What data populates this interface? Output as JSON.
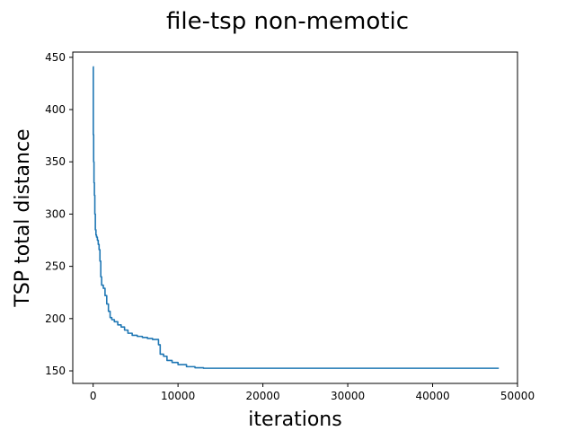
{
  "chart_data": {
    "type": "line",
    "title": "file-tsp non-memotic",
    "xlabel": "iterations",
    "ylabel": "TSP total distance",
    "xlim": [
      -2400,
      50000
    ],
    "ylim": [
      138,
      455
    ],
    "x_ticks": [
      0,
      10000,
      20000,
      30000,
      40000,
      50000
    ],
    "y_ticks": [
      150,
      200,
      250,
      300,
      350,
      400,
      450
    ],
    "grid": false,
    "legend": "none",
    "series": [
      {
        "color": "#1f77b4",
        "step": true,
        "points": [
          [
            0,
            441
          ],
          [
            20,
            376
          ],
          [
            60,
            350
          ],
          [
            100,
            330
          ],
          [
            150,
            318
          ],
          [
            200,
            300
          ],
          [
            260,
            285
          ],
          [
            330,
            280
          ],
          [
            400,
            278
          ],
          [
            500,
            275
          ],
          [
            600,
            271
          ],
          [
            700,
            266
          ],
          [
            800,
            255
          ],
          [
            900,
            240
          ],
          [
            1000,
            232
          ],
          [
            1200,
            229
          ],
          [
            1400,
            222
          ],
          [
            1600,
            214
          ],
          [
            1800,
            207
          ],
          [
            2000,
            201
          ],
          [
            2200,
            199
          ],
          [
            2500,
            197
          ],
          [
            2900,
            194
          ],
          [
            3300,
            192
          ],
          [
            3700,
            189
          ],
          [
            4100,
            186
          ],
          [
            4600,
            184
          ],
          [
            5200,
            183
          ],
          [
            5800,
            182
          ],
          [
            6400,
            181
          ],
          [
            7000,
            180
          ],
          [
            7400,
            180
          ],
          [
            7700,
            175
          ],
          [
            7900,
            166
          ],
          [
            8300,
            164
          ],
          [
            8700,
            160
          ],
          [
            9300,
            158
          ],
          [
            10000,
            156
          ],
          [
            11000,
            154
          ],
          [
            12000,
            153
          ],
          [
            13000,
            152.5
          ],
          [
            20000,
            152.5
          ],
          [
            30000,
            152.5
          ],
          [
            40000,
            152.5
          ],
          [
            47800,
            152.5
          ]
        ]
      }
    ]
  }
}
